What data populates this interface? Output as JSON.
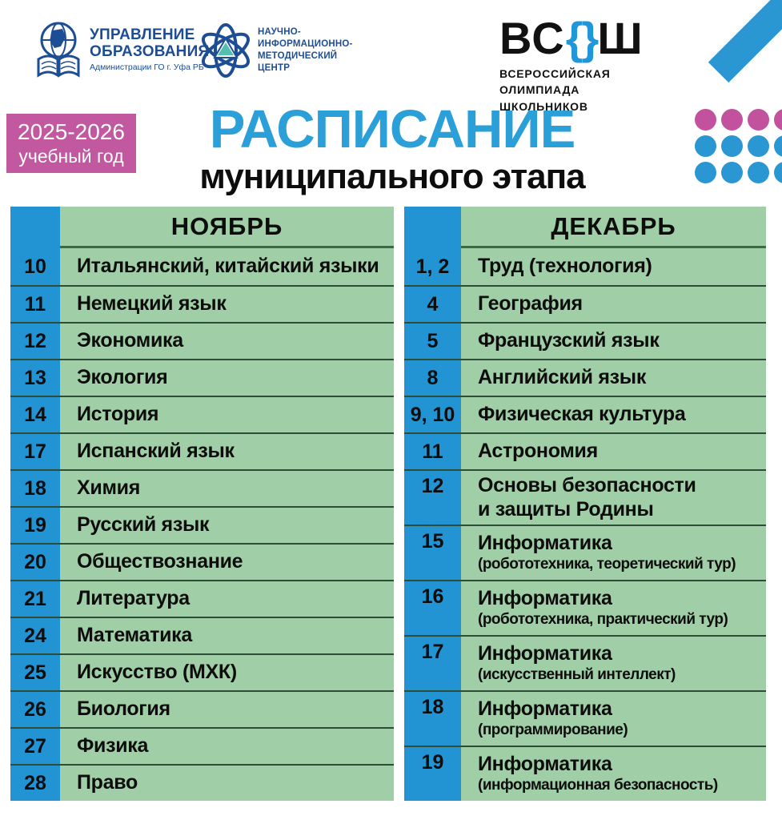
{
  "header": {
    "logo1": {
      "icon": "globe-book-icon",
      "title_line1": "УПРАВЛЕНИЕ",
      "title_line2": "ОБРАЗОВАНИЯ",
      "subtitle": "Администрации ГО г. Уфа РБ"
    },
    "logo2": {
      "icon": "atom-icon",
      "line1": "НАУЧНО-",
      "line2": "ИНФОРМАЦИОННО-",
      "line3": "МЕТОДИЧЕСКИЙ",
      "line4": "ЦЕНТР"
    },
    "vsosh": {
      "left": "ВС",
      "braces": "{}",
      "right": "Ш",
      "sub1": "ВСЕРОССИЙСКАЯ",
      "sub2": "ОЛИМПИАДА",
      "sub3": "ШКОЛЬНИКОВ"
    }
  },
  "badge": {
    "line1": "2025-2026",
    "line2": "учебный год"
  },
  "title": {
    "main": "РАСПИСАНИЕ",
    "subtitle": "муниципального этапа"
  },
  "colors": {
    "navy_logo": "#1d4d94",
    "title_blue": "#2b9fd8",
    "badge_pink": "#c2589f",
    "table_blue": "#2293d3",
    "table_green": "#a0cea6",
    "separator_dark_green": "#2e4d36",
    "dot_pink": "#c2529e",
    "dot_blue": "#2a96d2",
    "vsosh_brace_blue": "#2196d9",
    "text_black": "#0d0d0d"
  },
  "tables": [
    {
      "month": "НОЯБРЬ",
      "rows": [
        {
          "date": "10",
          "lines": [
            {
              "t": "Итальянский, китайский языки",
              "small": false
            }
          ]
        },
        {
          "date": "11",
          "lines": [
            {
              "t": "Немецкий язык",
              "small": false
            }
          ]
        },
        {
          "date": "12",
          "lines": [
            {
              "t": "Экономика",
              "small": false
            }
          ]
        },
        {
          "date": "13",
          "lines": [
            {
              "t": "Экология",
              "small": false
            }
          ]
        },
        {
          "date": "14",
          "lines": [
            {
              "t": "История",
              "small": false
            }
          ]
        },
        {
          "date": "17",
          "lines": [
            {
              "t": "Испанский язык",
              "small": false
            }
          ]
        },
        {
          "date": "18",
          "lines": [
            {
              "t": "Химия",
              "small": false
            }
          ]
        },
        {
          "date": "19",
          "lines": [
            {
              "t": "Русский язык",
              "small": false
            }
          ]
        },
        {
          "date": "20",
          "lines": [
            {
              "t": "Обществознание",
              "small": false
            }
          ]
        },
        {
          "date": "21",
          "lines": [
            {
              "t": "Литература",
              "small": false
            }
          ]
        },
        {
          "date": "24",
          "lines": [
            {
              "t": "Математика",
              "small": false
            }
          ]
        },
        {
          "date": "25",
          "lines": [
            {
              "t": "Искусство (МХК)",
              "small": false
            }
          ]
        },
        {
          "date": "26",
          "lines": [
            {
              "t": "Биология",
              "small": false
            }
          ]
        },
        {
          "date": "27",
          "lines": [
            {
              "t": "Физика",
              "small": false
            }
          ]
        },
        {
          "date": "28",
          "lines": [
            {
              "t": "Право",
              "small": false
            }
          ]
        }
      ]
    },
    {
      "month": "ДЕКАБРЬ",
      "rows": [
        {
          "date": "1, 2",
          "lines": [
            {
              "t": "Труд (технология)",
              "small": false
            }
          ]
        },
        {
          "date": "4",
          "lines": [
            {
              "t": "География",
              "small": false
            }
          ]
        },
        {
          "date": "5",
          "lines": [
            {
              "t": "Французский язык",
              "small": false
            }
          ]
        },
        {
          "date": "8",
          "lines": [
            {
              "t": "Английский язык",
              "small": false
            }
          ]
        },
        {
          "date": "9, 10",
          "lines": [
            {
              "t": "Физическая культура",
              "small": false
            }
          ]
        },
        {
          "date": "11",
          "lines": [
            {
              "t": "Астрономия",
              "small": false
            }
          ]
        },
        {
          "date": "12",
          "lines": [
            {
              "t": "Основы безопасности",
              "small": false
            },
            {
              "t": "и защиты Родины",
              "small": false
            }
          ]
        },
        {
          "date": "15",
          "lines": [
            {
              "t": "Информатика",
              "small": false
            },
            {
              "t": "(робототехника, теоретический тур)",
              "small": true
            }
          ]
        },
        {
          "date": "16",
          "lines": [
            {
              "t": "Информатика",
              "small": false
            },
            {
              "t": "(робототехника, практический тур)",
              "small": true
            }
          ]
        },
        {
          "date": "17",
          "lines": [
            {
              "t": "Информатика",
              "small": false
            },
            {
              "t": "(искусственный интеллект)",
              "small": true
            }
          ]
        },
        {
          "date": "18",
          "lines": [
            {
              "t": "Информатика",
              "small": false
            },
            {
              "t": "(программирование)",
              "small": true
            }
          ]
        },
        {
          "date": "19",
          "lines": [
            {
              "t": "Информатика",
              "small": false
            },
            {
              "t": "(информационная безопасность)",
              "small": true
            }
          ]
        }
      ]
    }
  ]
}
